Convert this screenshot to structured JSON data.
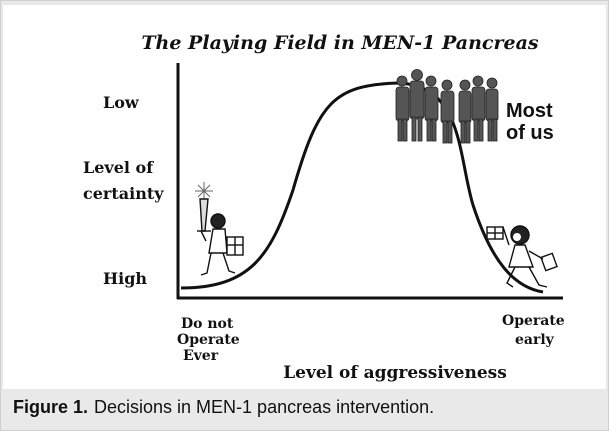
{
  "diagram": {
    "title": "The Playing Field in MEN-1 Pancreas",
    "y_axis": {
      "top_label": "Low",
      "middle_label_line1": "Level of",
      "middle_label_line2": "certainty",
      "bottom_label": "High"
    },
    "x_axis": {
      "label": "Level of aggressiveness",
      "left_end": [
        "Do not",
        "Operate",
        "Ever"
      ],
      "right_end": [
        "Operate",
        "early"
      ]
    },
    "crowd_label": [
      "Most",
      "of us"
    ],
    "curve_shape": "bell-shaped curve rising from High certainty at the left, peaking at Low certainty in the middle, falling back to High at the right",
    "figures": {
      "left": "knight-with-sword-and-shield-icon",
      "crowd": "crowd-of-people-silhouettes-icon",
      "right": "figure-with-flag-leaping-icon"
    }
  },
  "caption": {
    "figure_label": "Figure 1.",
    "text": "Decisions in MEN-1 pancreas intervention."
  }
}
